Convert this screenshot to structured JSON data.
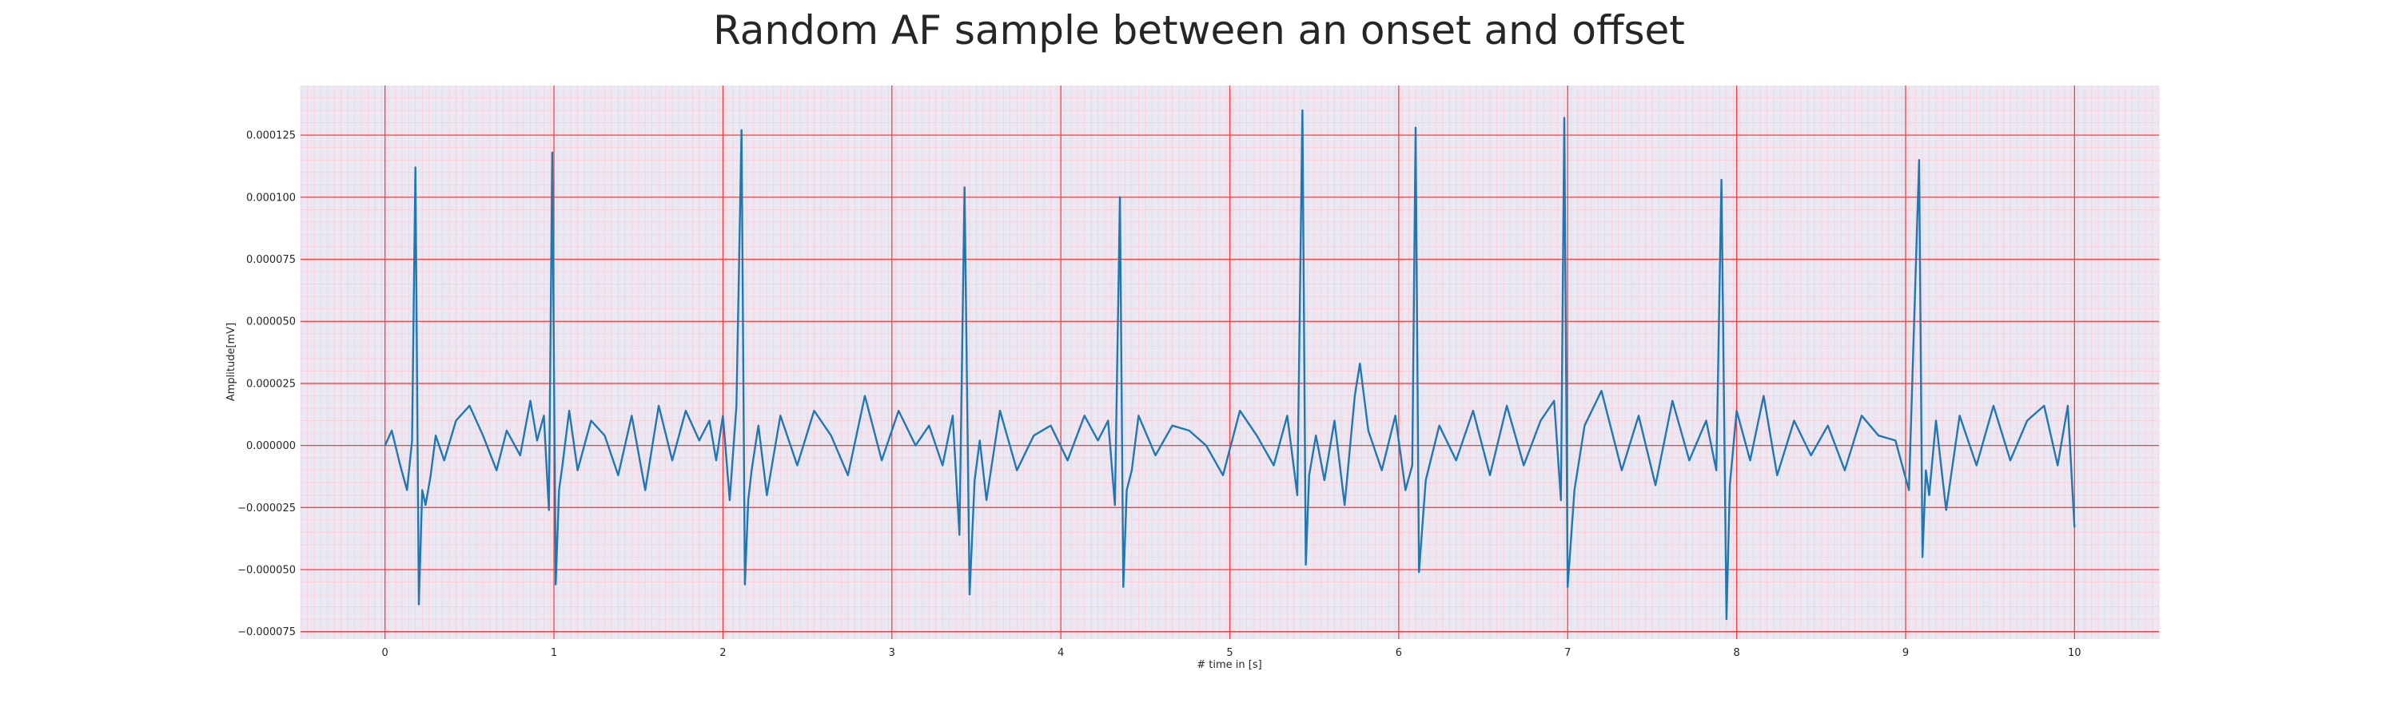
{
  "chart_data": {
    "type": "line",
    "title": "Random AF sample between an onset and offset",
    "xlabel": "# time in [s]",
    "ylabel": "Amplitude[mV]",
    "xlim": [
      -0.5,
      10.5
    ],
    "ylim": [
      -7.8e-05,
      0.000145
    ],
    "x_ticks": [
      0,
      1,
      2,
      3,
      4,
      5,
      6,
      7,
      8,
      9,
      10
    ],
    "x_tick_labels": [
      "0",
      "1",
      "2",
      "3",
      "4",
      "5",
      "6",
      "7",
      "8",
      "9",
      "10"
    ],
    "y_ticks": [
      -7.5e-05,
      -5e-05,
      -2.5e-05,
      0,
      2.5e-05,
      5e-05,
      7.5e-05,
      0.0001,
      0.000125
    ],
    "y_tick_labels": [
      "−0.000075",
      "−0.000050",
      "−0.000025",
      "0.000000",
      "0.000025",
      "0.000050",
      "0.000075",
      "0.000100",
      "0.000125"
    ],
    "grid": true,
    "legend": "none",
    "colors": {
      "line": "#1f77b4",
      "plot_background": "#eae8f2",
      "major_grid": "#ff3b3b",
      "minor_grid": "#ffc8d2"
    },
    "series": [
      {
        "x": [
          0.0,
          0.04,
          0.09,
          0.13,
          0.16,
          0.18,
          0.2,
          0.22,
          0.24,
          0.27,
          0.3,
          0.35,
          0.42,
          0.5,
          0.58,
          0.66,
          0.72,
          0.8,
          0.86,
          0.9,
          0.94,
          0.97,
          0.99,
          1.01,
          1.03,
          1.05,
          1.09,
          1.14,
          1.22,
          1.3,
          1.38,
          1.46,
          1.54,
          1.62,
          1.7,
          1.78,
          1.86,
          1.92,
          1.96,
          2.0,
          2.04,
          2.08,
          2.11,
          2.13,
          2.15,
          2.17,
          2.21,
          2.26,
          2.34,
          2.44,
          2.54,
          2.64,
          2.74,
          2.84,
          2.94,
          3.04,
          3.14,
          3.22,
          3.3,
          3.36,
          3.4,
          3.43,
          3.46,
          3.49,
          3.52,
          3.56,
          3.64,
          3.74,
          3.84,
          3.94,
          4.04,
          4.14,
          4.22,
          4.28,
          4.32,
          4.35,
          4.37,
          4.39,
          4.42,
          4.46,
          4.56,
          4.66,
          4.76,
          4.86,
          4.96,
          5.06,
          5.16,
          5.26,
          5.34,
          5.4,
          5.43,
          5.45,
          5.47,
          5.51,
          5.56,
          5.62,
          5.68,
          5.74,
          5.77,
          5.82,
          5.9,
          5.98,
          6.04,
          6.08,
          6.1,
          6.12,
          6.16,
          6.24,
          6.34,
          6.44,
          6.54,
          6.64,
          6.74,
          6.84,
          6.92,
          6.96,
          6.98,
          7.0,
          7.04,
          7.1,
          7.2,
          7.32,
          7.42,
          7.52,
          7.62,
          7.72,
          7.82,
          7.88,
          7.91,
          7.94,
          7.96,
          8.0,
          8.08,
          8.16,
          8.24,
          8.34,
          8.44,
          8.54,
          8.64,
          8.74,
          8.84,
          8.94,
          9.02,
          9.08,
          9.1,
          9.12,
          9.14,
          9.18,
          9.24,
          9.32,
          9.42,
          9.52,
          9.62,
          9.72,
          9.82,
          9.9,
          9.96,
          10.0
        ],
        "y": [
          0.0,
          6e-06,
          -8e-06,
          -1.8e-05,
          2e-06,
          0.000112,
          -6.4e-05,
          -1.8e-05,
          -2.4e-05,
          -1.2e-05,
          4e-06,
          -6e-06,
          1e-05,
          1.6e-05,
          4e-06,
          -1e-05,
          6e-06,
          -4e-06,
          1.8e-05,
          2e-06,
          1.2e-05,
          -2.6e-05,
          0.000118,
          -5.6e-05,
          -1.8e-05,
          -8e-06,
          1.4e-05,
          -1e-05,
          1e-05,
          4e-06,
          -1.2e-05,
          1.2e-05,
          -1.8e-05,
          1.6e-05,
          -6e-06,
          1.4e-05,
          2e-06,
          1e-05,
          -6e-06,
          1.2e-05,
          -2.2e-05,
          1.6e-05,
          0.000127,
          -5.6e-05,
          -2.2e-05,
          -1e-05,
          8e-06,
          -2e-05,
          1.2e-05,
          -8e-06,
          1.4e-05,
          4e-06,
          -1.2e-05,
          2e-05,
          -6e-06,
          1.4e-05,
          0.0,
          8e-06,
          -8e-06,
          1.2e-05,
          -3.6e-05,
          0.000104,
          -6e-05,
          -1.4e-05,
          2e-06,
          -2.2e-05,
          1.4e-05,
          -1e-05,
          4e-06,
          8e-06,
          -6e-06,
          1.2e-05,
          2e-06,
          1e-05,
          -2.4e-05,
          0.0001,
          -5.7e-05,
          -1.8e-05,
          -1e-05,
          1.2e-05,
          -4e-06,
          8e-06,
          6e-06,
          0.0,
          -1.2e-05,
          1.4e-05,
          4e-06,
          -8e-06,
          1.2e-05,
          -2e-05,
          0.000135,
          -4.8e-05,
          -1.2e-05,
          4e-06,
          -1.4e-05,
          1e-05,
          -2.4e-05,
          2e-05,
          3.3e-05,
          6e-06,
          -1e-05,
          1.2e-05,
          -1.8e-05,
          -8e-06,
          0.000128,
          -5.1e-05,
          -1.4e-05,
          8e-06,
          -6e-06,
          1.4e-05,
          -1.2e-05,
          1.6e-05,
          -8e-06,
          1e-05,
          1.8e-05,
          -2.2e-05,
          0.000132,
          -5.7e-05,
          -1.8e-05,
          8e-06,
          2.2e-05,
          -1e-05,
          1.2e-05,
          -1.6e-05,
          1.8e-05,
          -6e-06,
          1e-05,
          -1e-05,
          0.000107,
          -7e-05,
          -1.6e-05,
          1.4e-05,
          -6e-06,
          2e-05,
          -1.2e-05,
          1e-05,
          -4e-06,
          8e-06,
          -1e-05,
          1.2e-05,
          4e-06,
          2e-06,
          -1.8e-05,
          0.000115,
          -4.5e-05,
          -1e-05,
          -2e-05,
          1e-05,
          -2.6e-05,
          1.2e-05,
          -8e-06,
          1.6e-05,
          -6e-06,
          1e-05,
          1.6e-05,
          -8e-06,
          1.6e-05,
          -3.3e-05
        ]
      }
    ]
  }
}
